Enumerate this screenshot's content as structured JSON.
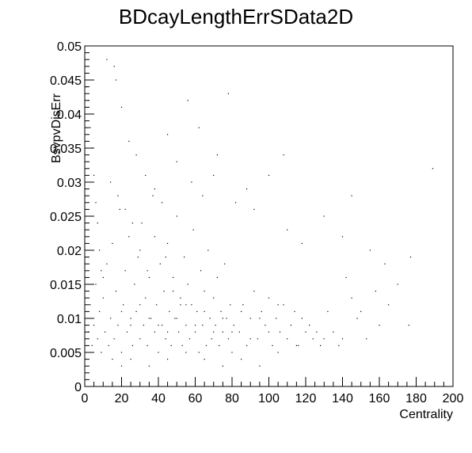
{
  "chart_data": {
    "type": "scatter",
    "title": "BDcayLengthErrSData2D",
    "xlabel": "Centrality",
    "ylabel": "BsvpvDisErr",
    "xlim": [
      0,
      200
    ],
    "ylim": [
      0,
      0.05
    ],
    "x_ticks": [
      "0",
      "20",
      "40",
      "60",
      "80",
      "100",
      "120",
      "140",
      "160",
      "180",
      "200"
    ],
    "y_ticks": [
      "0",
      "0.005",
      "0.01",
      "0.015",
      "0.02",
      "0.025",
      "0.03",
      "0.035",
      "0.04",
      "0.045",
      "0.05"
    ],
    "grid": false,
    "legend": "none",
    "marker_color": "#000000",
    "series": [
      {
        "points": [
          [
            2,
            0.008
          ],
          [
            3,
            0.012
          ],
          [
            4,
            0.006
          ],
          [
            5,
            0.009
          ],
          [
            6,
            0.015
          ],
          [
            7,
            0.007
          ],
          [
            8,
            0.011
          ],
          [
            9,
            0.005
          ],
          [
            10,
            0.013
          ],
          [
            11,
            0.008
          ],
          [
            12,
            0.018
          ],
          [
            13,
            0.006
          ],
          [
            14,
            0.01
          ],
          [
            15,
            0.021
          ],
          [
            16,
            0.007
          ],
          [
            17,
            0.014
          ],
          [
            18,
            0.009
          ],
          [
            19,
            0.026
          ],
          [
            20,
            0.005
          ],
          [
            21,
            0.012
          ],
          [
            22,
            0.017
          ],
          [
            23,
            0.008
          ],
          [
            24,
            0.022
          ],
          [
            25,
            0.01
          ],
          [
            26,
            0.006
          ],
          [
            27,
            0.015
          ],
          [
            28,
            0.011
          ],
          [
            29,
            0.019
          ],
          [
            30,
            0.007
          ],
          [
            31,
            0.024
          ],
          [
            32,
            0.009
          ],
          [
            33,
            0.013
          ],
          [
            34,
            0.006
          ],
          [
            35,
            0.016
          ],
          [
            36,
            0.01
          ],
          [
            37,
            0.028
          ],
          [
            38,
            0.008
          ],
          [
            39,
            0.012
          ],
          [
            40,
            0.005
          ],
          [
            41,
            0.018
          ],
          [
            42,
            0.009
          ],
          [
            43,
            0.014
          ],
          [
            44,
            0.007
          ],
          [
            45,
            0.021
          ],
          [
            46,
            0.011
          ],
          [
            47,
            0.006
          ],
          [
            48,
            0.016
          ],
          [
            49,
            0.01
          ],
          [
            50,
            0.025
          ],
          [
            51,
            0.008
          ],
          [
            52,
            0.013
          ],
          [
            53,
            0.006
          ],
          [
            54,
            0.019
          ],
          [
            55,
            0.009
          ],
          [
            56,
            0.015
          ],
          [
            57,
            0.007
          ],
          [
            58,
            0.012
          ],
          [
            59,
            0.023
          ],
          [
            60,
            0.008
          ],
          [
            61,
            0.011
          ],
          [
            62,
            0.005
          ],
          [
            63,
            0.017
          ],
          [
            64,
            0.009
          ],
          [
            65,
            0.014
          ],
          [
            66,
            0.006
          ],
          [
            67,
            0.02
          ],
          [
            68,
            0.01
          ],
          [
            69,
            0.007
          ],
          [
            70,
            0.013
          ],
          [
            71,
            0.009
          ],
          [
            72,
            0.016
          ],
          [
            73,
            0.006
          ],
          [
            74,
            0.011
          ],
          [
            75,
            0.008
          ],
          [
            76,
            0.018
          ],
          [
            77,
            0.01
          ],
          [
            78,
            0.007
          ],
          [
            79,
            0.012
          ],
          [
            80,
            0.005
          ],
          [
            81,
            0.009
          ],
          [
            82,
            0.027
          ],
          [
            84,
            0.008
          ],
          [
            86,
            0.012
          ],
          [
            88,
            0.006
          ],
          [
            90,
            0.01
          ],
          [
            92,
            0.014
          ],
          [
            94,
            0.007
          ],
          [
            96,
            0.011
          ],
          [
            98,
            0.009
          ],
          [
            100,
            0.013
          ],
          [
            102,
            0.006
          ],
          [
            104,
            0.01
          ],
          [
            106,
            0.008
          ],
          [
            108,
            0.012
          ],
          [
            110,
            0.007
          ],
          [
            112,
            0.009
          ],
          [
            114,
            0.011
          ],
          [
            116,
            0.006
          ],
          [
            118,
            0.01
          ],
          [
            120,
            0.008
          ],
          [
            122,
            0.009
          ],
          [
            124,
            0.007
          ],
          [
            126,
            0.008
          ],
          [
            128,
            0.006
          ],
          [
            130,
            0.007
          ],
          [
            132,
            0.011
          ],
          [
            135,
            0.008
          ],
          [
            138,
            0.006
          ],
          [
            140,
            0.007
          ],
          [
            142,
            0.016
          ],
          [
            145,
            0.013
          ],
          [
            148,
            0.01
          ],
          [
            150,
            0.011
          ],
          [
            153,
            0.007
          ],
          [
            155,
            0.02
          ],
          [
            158,
            0.014
          ],
          [
            160,
            0.009
          ],
          [
            163,
            0.018
          ],
          [
            165,
            0.012
          ],
          [
            170,
            0.015
          ],
          [
            176,
            0.009
          ],
          [
            177,
            0.019
          ],
          [
            189,
            0.032
          ],
          [
            108,
            0.034
          ],
          [
            100,
            0.031
          ],
          [
            110,
            0.023
          ],
          [
            118,
            0.021
          ],
          [
            130,
            0.025
          ],
          [
            140,
            0.022
          ],
          [
            145,
            0.028
          ],
          [
            12,
            0.048
          ],
          [
            16,
            0.047
          ],
          [
            17,
            0.045
          ],
          [
            20,
            0.041
          ],
          [
            24,
            0.036
          ],
          [
            28,
            0.034
          ],
          [
            33,
            0.031
          ],
          [
            38,
            0.029
          ],
          [
            45,
            0.037
          ],
          [
            56,
            0.042
          ],
          [
            62,
            0.038
          ],
          [
            72,
            0.034
          ],
          [
            78,
            0.043
          ],
          [
            58,
            0.03
          ],
          [
            64,
            0.028
          ],
          [
            88,
            0.029
          ],
          [
            92,
            0.026
          ],
          [
            70,
            0.031
          ],
          [
            50,
            0.033
          ],
          [
            42,
            0.027
          ],
          [
            14,
            0.03
          ],
          [
            18,
            0.028
          ],
          [
            22,
            0.026
          ],
          [
            26,
            0.024
          ],
          [
            30,
            0.02
          ],
          [
            34,
            0.017
          ],
          [
            38,
            0.022
          ],
          [
            44,
            0.019
          ],
          [
            48,
            0.014
          ],
          [
            52,
            0.012
          ],
          [
            1,
            0.044
          ],
          [
            2,
            0.042
          ],
          [
            3,
            0.038
          ],
          [
            4,
            0.035
          ],
          [
            5,
            0.031
          ],
          [
            6,
            0.027
          ],
          [
            7,
            0.024
          ],
          [
            8,
            0.02
          ],
          [
            9,
            0.017
          ],
          [
            10,
            0.016
          ],
          [
            15,
            0.004
          ],
          [
            20,
            0.003
          ],
          [
            25,
            0.004
          ],
          [
            35,
            0.003
          ],
          [
            45,
            0.004
          ],
          [
            55,
            0.005
          ],
          [
            65,
            0.004
          ],
          [
            75,
            0.003
          ],
          [
            85,
            0.004
          ],
          [
            95,
            0.003
          ],
          [
            105,
            0.005
          ],
          [
            115,
            0.006
          ],
          [
            20,
            0.011
          ],
          [
            25,
            0.009
          ],
          [
            30,
            0.012
          ],
          [
            35,
            0.01
          ],
          [
            40,
            0.009
          ],
          [
            45,
            0.008
          ],
          [
            50,
            0.01
          ],
          [
            55,
            0.012
          ],
          [
            60,
            0.009
          ],
          [
            65,
            0.011
          ],
          [
            70,
            0.008
          ],
          [
            75,
            0.01
          ],
          [
            80,
            0.008
          ],
          [
            85,
            0.011
          ],
          [
            90,
            0.007
          ],
          [
            95,
            0.01
          ],
          [
            100,
            0.008
          ],
          [
            105,
            0.012
          ]
        ]
      }
    ]
  }
}
